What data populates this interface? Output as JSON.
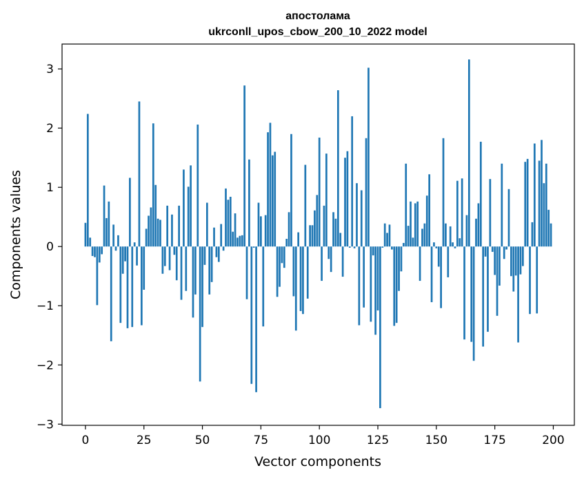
{
  "chart_data": {
    "type": "bar",
    "title": "апостолама",
    "subtitle": "ukrconll_upos_cbow_200_10_2022 model",
    "xlabel": "Vector components",
    "ylabel": "Components values",
    "xlim": [
      -10,
      209
    ],
    "ylim": [
      -3.02,
      3.42
    ],
    "xticks": [
      0,
      25,
      50,
      75,
      100,
      125,
      150,
      175,
      200
    ],
    "xtick_labels": [
      "0",
      "25",
      "50",
      "75",
      "100",
      "125",
      "150",
      "175",
      "200"
    ],
    "yticks": [
      -3,
      -2,
      -1,
      0,
      1,
      2,
      3
    ],
    "ytick_labels": [
      "−3",
      "−2",
      "−1",
      "0",
      "1",
      "2",
      "3"
    ],
    "bar_color": "#1f77b4",
    "grid": false,
    "x": [
      0,
      1,
      2,
      3,
      4,
      5,
      6,
      7,
      8,
      9,
      10,
      11,
      12,
      13,
      14,
      15,
      16,
      17,
      18,
      19,
      20,
      21,
      22,
      23,
      24,
      25,
      26,
      27,
      28,
      29,
      30,
      31,
      32,
      33,
      34,
      35,
      36,
      37,
      38,
      39,
      40,
      41,
      42,
      43,
      44,
      45,
      46,
      47,
      48,
      49,
      50,
      51,
      52,
      53,
      54,
      55,
      56,
      57,
      58,
      59,
      60,
      61,
      62,
      63,
      64,
      65,
      66,
      67,
      68,
      69,
      70,
      71,
      72,
      73,
      74,
      75,
      76,
      77,
      78,
      79,
      80,
      81,
      82,
      83,
      84,
      85,
      86,
      87,
      88,
      89,
      90,
      91,
      92,
      93,
      94,
      95,
      96,
      97,
      98,
      99,
      100,
      101,
      102,
      103,
      104,
      105,
      106,
      107,
      108,
      109,
      110,
      111,
      112,
      113,
      114,
      115,
      116,
      117,
      118,
      119,
      120,
      121,
      122,
      123,
      124,
      125,
      126,
      127,
      128,
      129,
      130,
      131,
      132,
      133,
      134,
      135,
      136,
      137,
      138,
      139,
      140,
      141,
      142,
      143,
      144,
      145,
      146,
      147,
      148,
      149,
      150,
      151,
      152,
      153,
      154,
      155,
      156,
      157,
      158,
      159,
      160,
      161,
      162,
      163,
      164,
      165,
      166,
      167,
      168,
      169,
      170,
      171,
      172,
      173,
      174,
      175,
      176,
      177,
      178,
      179,
      180,
      181,
      182,
      183,
      184,
      185,
      186,
      187,
      188,
      189,
      190,
      191,
      192,
      193,
      194,
      195,
      196,
      197,
      198,
      199
    ],
    "values": [
      0.4,
      2.24,
      0.15,
      -0.16,
      -0.18,
      -0.99,
      -0.27,
      -0.13,
      1.03,
      0.48,
      0.76,
      -1.6,
      0.37,
      -0.07,
      0.19,
      -1.29,
      -0.46,
      -0.25,
      -1.38,
      1.16,
      -1.36,
      0.07,
      -0.32,
      2.45,
      -1.33,
      -0.73,
      0.3,
      0.52,
      0.66,
      2.08,
      1.04,
      0.47,
      0.45,
      -0.46,
      -0.33,
      0.69,
      -0.4,
      0.54,
      -0.14,
      -0.57,
      0.69,
      -0.9,
      1.3,
      -0.75,
      1.01,
      1.37,
      -1.2,
      -0.81,
      2.06,
      -2.28,
      -1.36,
      -0.31,
      0.74,
      -0.81,
      -0.6,
      0.32,
      -0.18,
      -0.26,
      0.38,
      -0.07,
      0.98,
      0.79,
      0.84,
      0.25,
      0.56,
      0.15,
      0.18,
      0.19,
      2.72,
      -0.89,
      1.47,
      -2.32,
      -0.02,
      -2.46,
      0.74,
      0.51,
      -1.35,
      0.53,
      1.93,
      2.09,
      1.54,
      1.6,
      -0.85,
      -0.68,
      -0.28,
      -0.36,
      0.13,
      0.58,
      1.9,
      -0.84,
      -1.42,
      0.24,
      -1.09,
      -1.14,
      1.38,
      -0.88,
      0.36,
      0.36,
      0.61,
      0.87,
      1.84,
      -0.58,
      0.69,
      1.57,
      -0.21,
      -0.43,
      0.58,
      0.47,
      2.64,
      0.23,
      -0.51,
      1.5,
      1.61,
      -0.02,
      2.2,
      -0.03,
      1.07,
      -1.33,
      0.95,
      -1.03,
      1.83,
      3.02,
      -1.27,
      -0.15,
      -1.49,
      -1.08,
      -2.73,
      -0.02,
      0.39,
      0.23,
      0.37,
      -0.05,
      -1.34,
      -1.29,
      -0.75,
      -0.42,
      0.06,
      1.4,
      0.35,
      0.76,
      0.15,
      0.73,
      0.76,
      -0.58,
      0.3,
      0.39,
      0.86,
      1.22,
      -0.94,
      0.07,
      -0.03,
      -0.34,
      -1.04,
      1.83,
      0.39,
      -0.52,
      0.34,
      0.07,
      -0.03,
      1.11,
      0.14,
      1.15,
      -1.57,
      0.53,
      3.16,
      -1.61,
      -1.93,
      0.47,
      0.73,
      1.77,
      -1.69,
      -0.17,
      -1.44,
      1.14,
      -0.09,
      -0.48,
      -1.17,
      -0.66,
      1.4,
      -0.21,
      -0.05,
      0.97,
      -0.5,
      -0.76,
      -0.49,
      -1.62,
      -0.47,
      -0.33,
      1.43,
      1.48,
      -1.14,
      0.41,
      1.74,
      -1.13,
      1.45,
      1.8,
      1.07,
      1.4,
      0.62,
      0.39
    ]
  }
}
